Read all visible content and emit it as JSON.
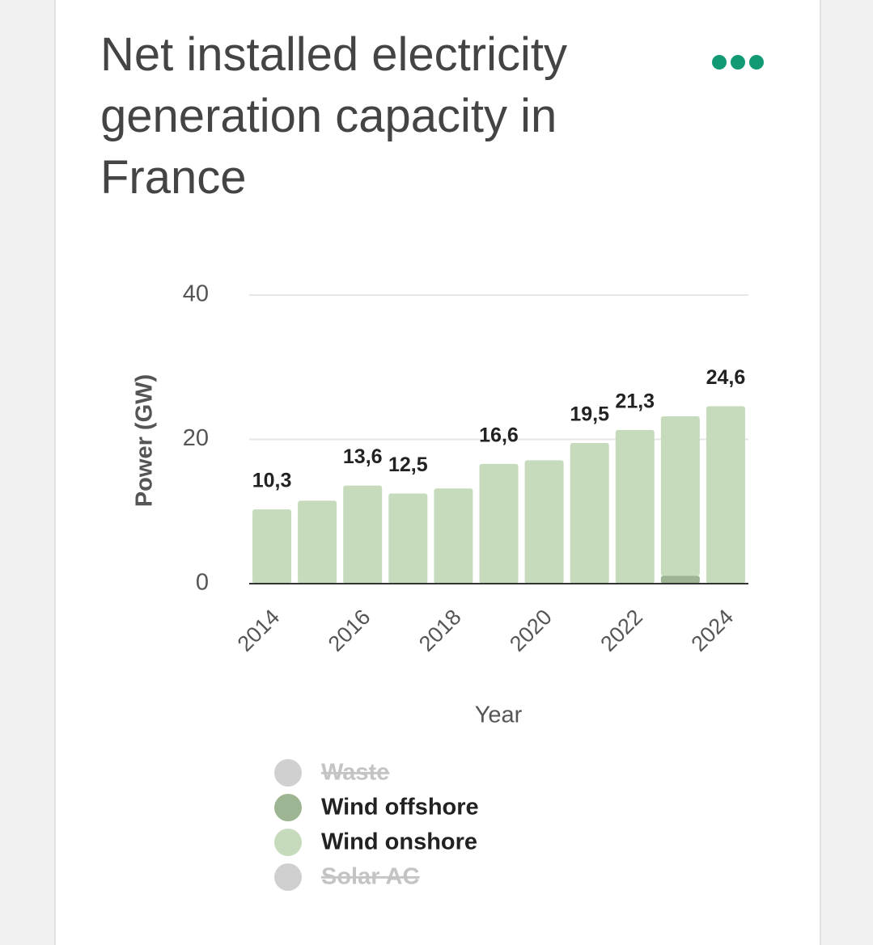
{
  "chart_data": {
    "type": "stacked_bar",
    "title": "Net installed electricity generation capacity in France",
    "categories": [
      "2014",
      null,
      "2016",
      null,
      "2018",
      null,
      "2020",
      null,
      "2022",
      null,
      "2024"
    ],
    "series": [
      {
        "name": "Waste",
        "color": "#d0d0d0",
        "hidden": true,
        "values": [
          null,
          null,
          null,
          null,
          null,
          null,
          null,
          null,
          null,
          null,
          null
        ]
      },
      {
        "name": "Wind offshore",
        "color": "#9db592",
        "values": [
          0,
          0,
          0,
          0,
          0,
          0,
          0,
          0,
          0,
          1.1,
          0
        ]
      },
      {
        "name": "Wind onshore",
        "color": "#c5dbbc",
        "values": [
          10.3,
          11.5,
          13.6,
          12.5,
          13.2,
          16.6,
          17.1,
          19.5,
          21.3,
          22.1,
          24.6
        ],
        "value_labels": [
          "10,3",
          null,
          "13,6",
          "12,5",
          null,
          "16,6",
          null,
          "19,5",
          "21,3",
          null,
          "24,6"
        ]
      },
      {
        "name": "Solar AC",
        "color": "#d0d0d0",
        "hidden": true,
        "values": [
          null,
          null,
          null,
          null,
          null,
          null,
          null,
          null,
          null,
          null,
          null
        ]
      }
    ],
    "ylim": [
      0,
      40
    ],
    "yticks": [
      0,
      20,
      40
    ],
    "ylabel": "Power (GW)",
    "xlabel": "Year",
    "grid": true
  }
}
